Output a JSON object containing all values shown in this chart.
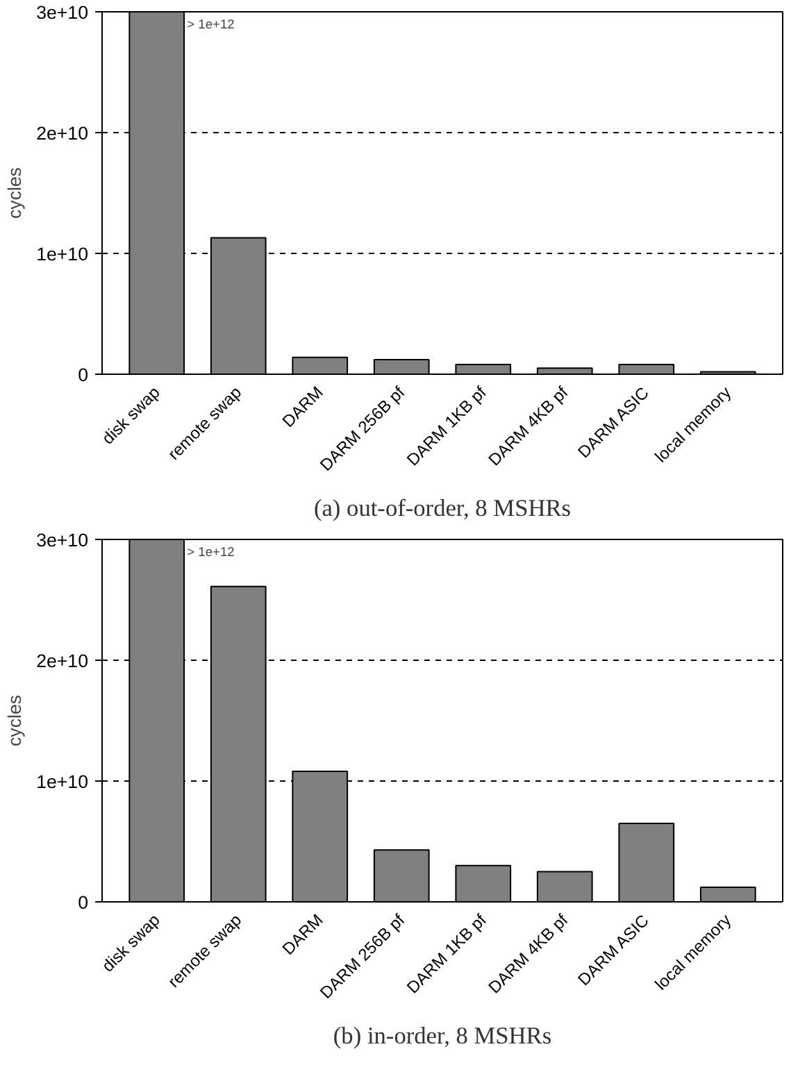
{
  "chart_data": [
    {
      "type": "bar",
      "title": "(a) out-of-order, 8 MSHRs",
      "ylabel": "cycles",
      "categories": [
        "disk swap",
        "remote swap",
        "DARM",
        "DARM 256B pf",
        "DARM 1KB pf",
        "DARM 4KB pf",
        "DARM ASIC",
        "local memory"
      ],
      "values": [
        30000000000.0,
        11300000000.0,
        1400000000.0,
        1200000000.0,
        800000000.0,
        500000000.0,
        800000000.0,
        200000000.0
      ],
      "color": "#808080",
      "ylim": [
        0,
        30000000000.0
      ],
      "yticks": [
        0,
        {
          "value": 10000000000.0,
          "label": "1e+10"
        },
        {
          "value": 20000000000.0,
          "label": "2e+10"
        },
        {
          "value": 30000000000.0,
          "label": "3e+10"
        }
      ],
      "grid": "y",
      "annotations": [
        {
          "text": "> 1e+12",
          "x": "disk swap",
          "y": 30000000000.0
        }
      ]
    },
    {
      "type": "bar",
      "title": "(b) in-order, 8 MSHRs",
      "ylabel": "cycles",
      "categories": [
        "disk swap",
        "remote swap",
        "DARM",
        "DARM 256B pf",
        "DARM 1KB pf",
        "DARM 4KB pf",
        "DARM ASIC",
        "local memory"
      ],
      "values": [
        30000000000.0,
        26100000000.0,
        10800000000.0,
        4300000000.0,
        3000000000.0,
        2500000000.0,
        6500000000.0,
        1200000000.0
      ],
      "color": "#808080",
      "ylim": [
        0,
        30000000000.0
      ],
      "yticks": [
        0,
        {
          "value": 10000000000.0,
          "label": "1e+10"
        },
        {
          "value": 20000000000.0,
          "label": "2e+10"
        },
        {
          "value": 30000000000.0,
          "label": "3e+10"
        }
      ],
      "grid": "y",
      "annotations": [
        {
          "text": "> 1e+12",
          "x": "disk swap",
          "y": 30000000000.0
        }
      ]
    }
  ]
}
